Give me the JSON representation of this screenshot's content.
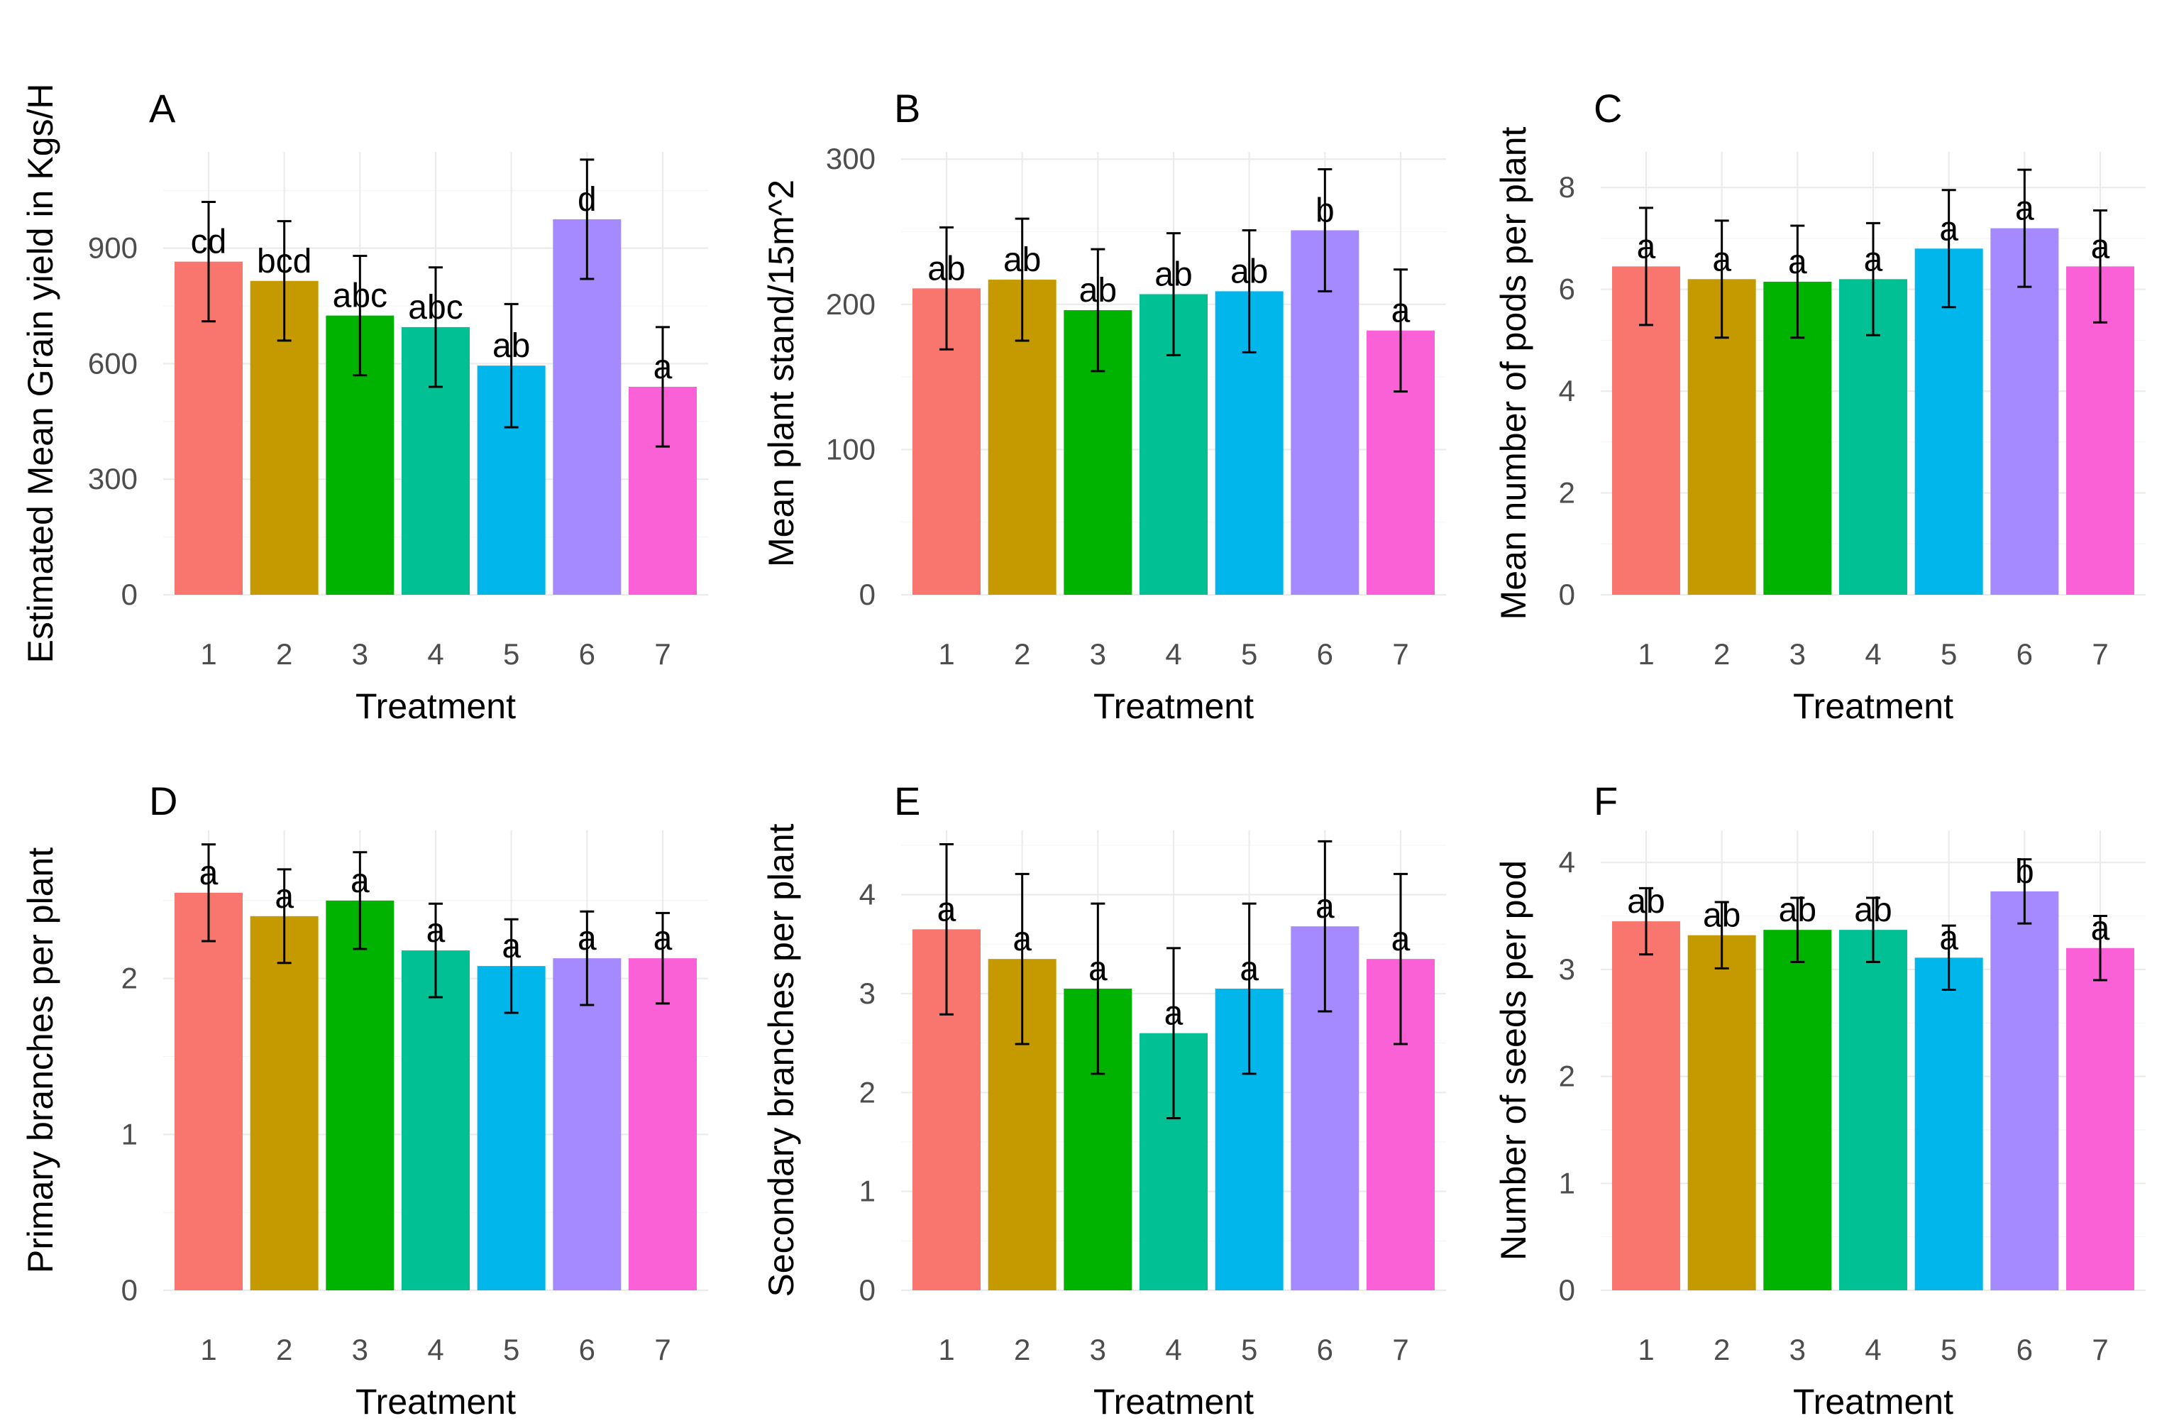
{
  "colors": [
    "#F8766D",
    "#C49A00",
    "#00B300",
    "#00C094",
    "#00B6EB",
    "#A58AFF",
    "#FB61D7"
  ],
  "chart_data": [
    {
      "type": "bar",
      "panel": "A",
      "categories": [
        "1",
        "2",
        "3",
        "4",
        "5",
        "6",
        "7"
      ],
      "values": [
        865,
        815,
        725,
        695,
        595,
        975,
        540
      ],
      "errors": [
        155,
        155,
        155,
        155,
        160,
        155,
        155
      ],
      "labels": [
        "cd",
        "bcd",
        "abc",
        "abc",
        "ab",
        "d",
        "a"
      ],
      "xlabel": "Treatment",
      "ylabel": "Estimated Mean Grain yield in Kgs/H",
      "ylim": [
        0,
        1150
      ],
      "yticks": [
        0,
        300,
        600,
        900
      ],
      "ytick_labels": [
        "0",
        "300",
        "600",
        "900"
      ],
      "grid": true
    },
    {
      "type": "bar",
      "panel": "B",
      "categories": [
        "1",
        "2",
        "3",
        "4",
        "5",
        "6",
        "7"
      ],
      "values": [
        211,
        217,
        196,
        207,
        209,
        251,
        182
      ],
      "errors": [
        42,
        42,
        42,
        42,
        42,
        42,
        42
      ],
      "labels": [
        "ab",
        "ab",
        "ab",
        "ab",
        "ab",
        "b",
        "a"
      ],
      "xlabel": "Treatment",
      "ylabel": "Mean plant stand/15m^2",
      "ylim": [
        0,
        305
      ],
      "yticks": [
        0,
        100,
        200,
        300
      ],
      "ytick_labels": [
        "0",
        "100",
        "200",
        "300"
      ],
      "grid": true
    },
    {
      "type": "bar",
      "panel": "C",
      "categories": [
        "1",
        "2",
        "3",
        "4",
        "5",
        "6",
        "7"
      ],
      "values": [
        6.45,
        6.2,
        6.15,
        6.2,
        6.8,
        7.2,
        6.45
      ],
      "errors": [
        1.15,
        1.15,
        1.1,
        1.1,
        1.15,
        1.15,
        1.1
      ],
      "labels": [
        "a",
        "a",
        "a",
        "a",
        "a",
        "a",
        "a"
      ],
      "xlabel": "Treatment",
      "ylabel": "Mean number of pods per plant",
      "ylim": [
        0,
        8.7
      ],
      "yticks": [
        0,
        2,
        4,
        6,
        8
      ],
      "ytick_labels": [
        "0",
        "2",
        "4",
        "6",
        "8"
      ],
      "grid": true
    },
    {
      "type": "bar",
      "panel": "D",
      "categories": [
        "1",
        "2",
        "3",
        "4",
        "5",
        "6",
        "7"
      ],
      "values": [
        2.55,
        2.4,
        2.5,
        2.18,
        2.08,
        2.13,
        2.13
      ],
      "errors": [
        0.31,
        0.3,
        0.31,
        0.3,
        0.3,
        0.3,
        0.29
      ],
      "labels": [
        "a",
        "a",
        "a",
        "a",
        "a",
        "a",
        "a"
      ],
      "xlabel": "Treatment",
      "ylabel": "Primary branches per plant",
      "ylim": [
        0,
        2.95
      ],
      "yticks": [
        0,
        1,
        2
      ],
      "ytick_labels": [
        "0",
        "1",
        "2"
      ],
      "grid": true
    },
    {
      "type": "bar",
      "panel": "E",
      "categories": [
        "1",
        "2",
        "3",
        "4",
        "5",
        "6",
        "7"
      ],
      "values": [
        3.65,
        3.35,
        3.05,
        2.6,
        3.05,
        3.68,
        3.35
      ],
      "errors": [
        0.86,
        0.86,
        0.86,
        0.86,
        0.86,
        0.86,
        0.86
      ],
      "labels": [
        "a",
        "a",
        "a",
        "a",
        "a",
        "a",
        "a"
      ],
      "xlabel": "Treatment",
      "ylabel": "Secondary branches per plant",
      "ylim": [
        0,
        4.65
      ],
      "yticks": [
        0,
        1,
        2,
        3,
        4
      ],
      "ytick_labels": [
        "0",
        "1",
        "2",
        "3",
        "4"
      ],
      "grid": true
    },
    {
      "type": "bar",
      "panel": "F",
      "categories": [
        "1",
        "2",
        "3",
        "4",
        "5",
        "6",
        "7"
      ],
      "values": [
        3.45,
        3.32,
        3.37,
        3.37,
        3.11,
        3.73,
        3.2
      ],
      "errors": [
        0.31,
        0.31,
        0.3,
        0.3,
        0.3,
        0.3,
        0.3
      ],
      "labels": [
        "ab",
        "ab",
        "ab",
        "ab",
        "a",
        "b",
        "a"
      ],
      "xlabel": "Treatment",
      "ylabel": "Number of seeds per pod",
      "ylim": [
        0,
        4.3
      ],
      "yticks": [
        0,
        1,
        2,
        3,
        4
      ],
      "ytick_labels": [
        "0",
        "1",
        "2",
        "3",
        "4"
      ],
      "grid": true
    }
  ]
}
